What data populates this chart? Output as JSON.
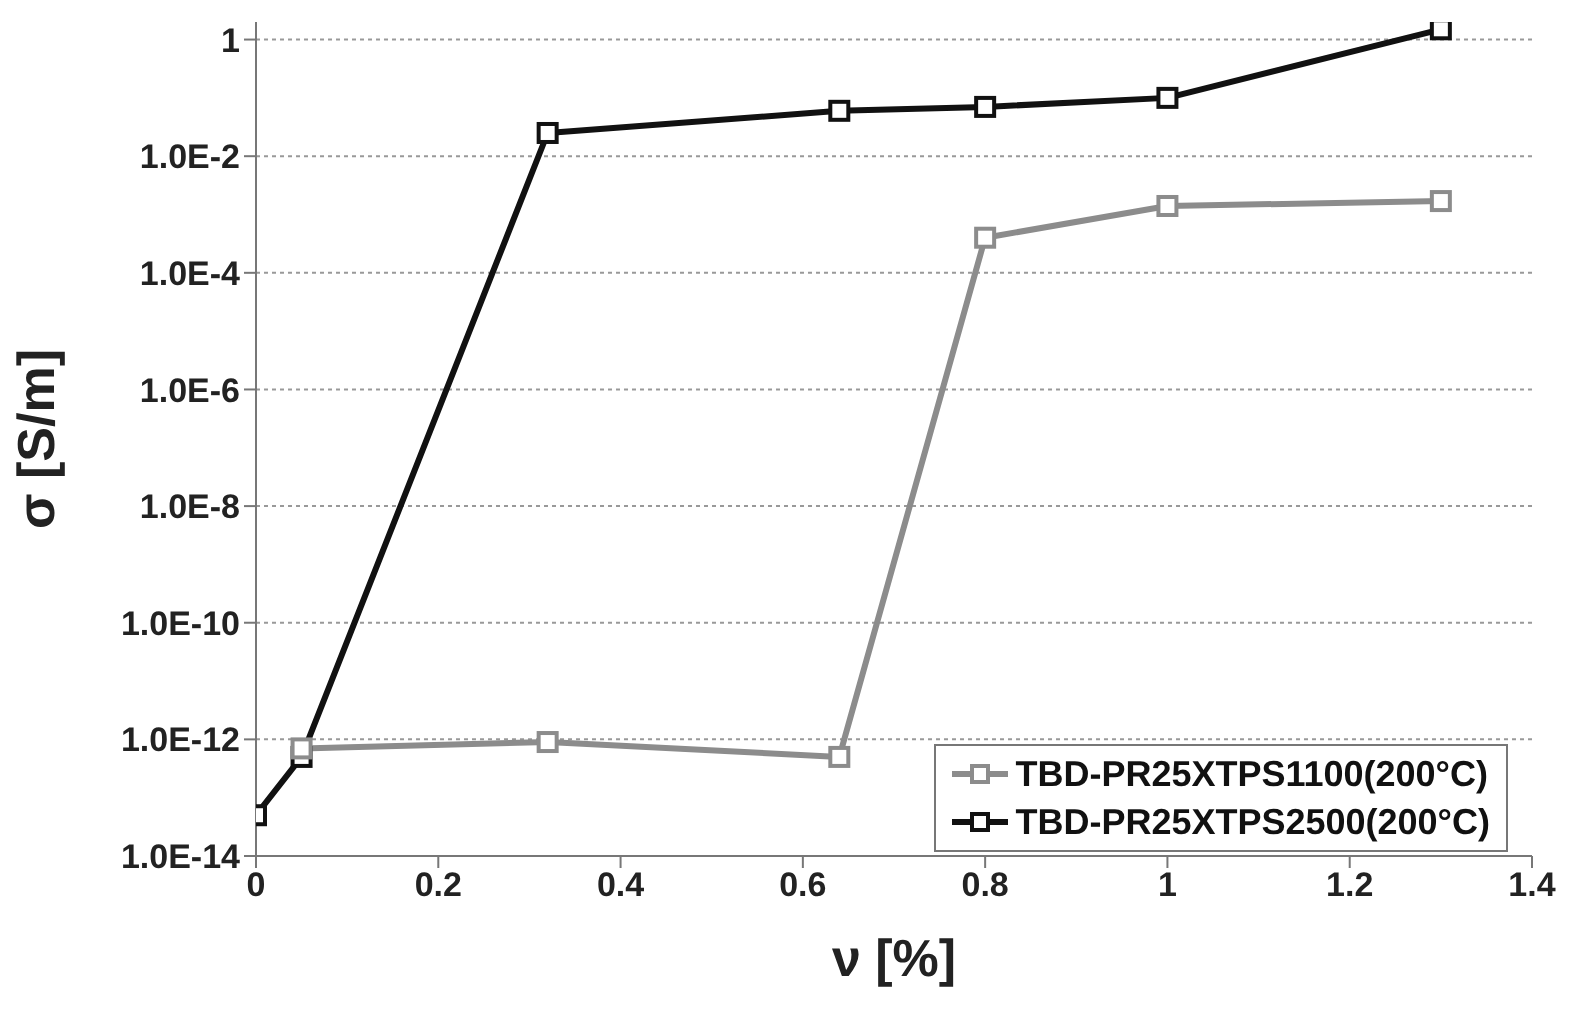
{
  "chart_data": {
    "type": "line",
    "xlabel": "ν [%]",
    "ylabel": "σ [S/m]",
    "log": "y",
    "grid": "y",
    "legend": "bottom right",
    "marker": "square",
    "line_style": "solid",
    "xlim": [
      0,
      1.4
    ],
    "xticks": [
      0,
      0.2,
      0.4,
      0.6,
      0.8,
      1,
      1.2,
      1.4
    ],
    "ylim": [
      1e-14,
      2
    ],
    "yticks": [
      {
        "value": 1e-14,
        "label": "1.0E-14"
      },
      {
        "value": 1e-12,
        "label": "1.0E-12"
      },
      {
        "value": 1e-10,
        "label": "1.0E-10"
      },
      {
        "value": 1e-08,
        "label": "1.0E-8"
      },
      {
        "value": 1e-06,
        "label": "1.0E-6"
      },
      {
        "value": 0.0001,
        "label": "1.0E-4"
      },
      {
        "value": 0.01,
        "label": "1.0E-2"
      },
      1
    ],
    "series": [
      {
        "name": "TBD-PR25XTPS1100(200°C)",
        "color": "#8c8c8c",
        "x": [
          0.05,
          0.32,
          0.64,
          0.8,
          1,
          1.3
        ],
        "values": [
          7e-13,
          9e-13,
          5e-13,
          0.0004,
          0.0014,
          0.0017
        ]
      },
      {
        "name": "TBD-PR25XTPS2500(200°C)",
        "color": "#111111",
        "x": [
          0,
          0.05,
          0.32,
          0.64,
          0.8,
          1,
          1.3
        ],
        "values": [
          5e-14,
          5e-13,
          0.025,
          0.06,
          0.07,
          0.1,
          1.5
        ]
      }
    ]
  }
}
